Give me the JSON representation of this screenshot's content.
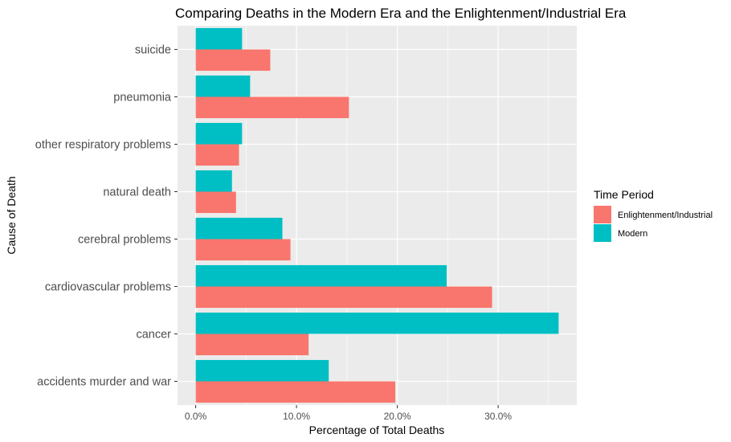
{
  "chart_data": {
    "type": "bar",
    "orientation": "horizontal",
    "title": "Comparing Deaths in the Modern Era and the Enlightenment/Industrial Era",
    "xlabel": "Percentage of Total Deaths",
    "ylabel": "Cause of Death",
    "categories": [
      "accidents murder and war",
      "cancer",
      "cardiovascular problems",
      "cerebral problems",
      "natural death",
      "other respiratory problems",
      "pneumonia",
      "suicide"
    ],
    "series": [
      {
        "name": "Enlightenment/Industrial",
        "color": "#F8766D",
        "values": [
          19.8,
          11.2,
          29.4,
          9.4,
          4.0,
          4.3,
          15.2,
          7.4
        ]
      },
      {
        "name": "Modern",
        "color": "#00BFC4",
        "values": [
          13.2,
          36.0,
          24.9,
          8.6,
          3.6,
          4.6,
          5.4,
          4.6
        ]
      }
    ],
    "xlim": [
      -1.8,
      37.8
    ],
    "xticks": [
      0,
      10,
      20,
      30
    ],
    "xtick_labels": [
      "0.0%",
      "10.0%",
      "20.0%",
      "30.0%"
    ],
    "grid": true,
    "legend": {
      "title": "Time Period",
      "position": "right"
    }
  }
}
